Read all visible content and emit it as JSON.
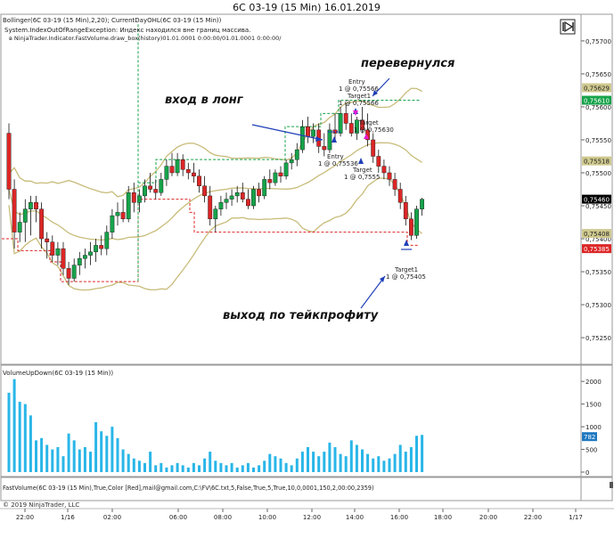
{
  "window": {
    "title": "6C 03-19 (15 Min)  16.01.2019"
  },
  "price_panel": {
    "indicators_label": "Bollinger(6C 03-19 (15 Min),2,20); CurrentDayOHL(6C 03-19 (15 Min))",
    "error_line1": "System.IndexOutOfRangeException: Индекс находился вне границ массива.",
    "error_line2": "в NinjaTrader.Indicator.FastVolume.draw_box(history)01.01.0001 0:00:00/01.01.0001 0:00:00/",
    "annotations": [
      {
        "text": "перевернулся"
      },
      {
        "text": "вход в лонг"
      },
      {
        "text": "выход по тейкпрофиту"
      }
    ],
    "order_labels": [
      {
        "lines": [
          "Entry",
          "1 @ 0,75566"
        ]
      },
      {
        "lines": [
          "Target1",
          "1 @ 0,75566"
        ]
      },
      {
        "lines": [
          "Target",
          "1 @ 0,75630"
        ]
      },
      {
        "lines": [
          "Entry",
          "1 @ 0,75536"
        ]
      },
      {
        "lines": [
          "Target",
          "1 @ 0,7555"
        ]
      },
      {
        "lines": [
          "Target1",
          "1 @ 0,75405"
        ]
      }
    ],
    "y_ticks": [
      "0,75700",
      "0,75650",
      "0,75600",
      "0,75550",
      "0,75500",
      "0,75450",
      "0,75400",
      "0,75350",
      "0,75300",
      "0,75250"
    ],
    "badges": [
      {
        "text": "0,75629",
        "color": "#cfc98f"
      },
      {
        "text": "0,75610",
        "color": "#16a34a"
      },
      {
        "text": "0,75518",
        "color": "#cfc98f"
      },
      {
        "text": "0,75460",
        "color": "#000000"
      },
      {
        "text": "0,75408",
        "color": "#cfc98f"
      },
      {
        "text": "0,75385",
        "color": "#dc2626"
      }
    ]
  },
  "volume_panel": {
    "label": "VolumeUpDown(6C 03-19 (15 Min))",
    "y_ticks": [
      "2000",
      "1500",
      "1000",
      "500",
      "0"
    ],
    "badge": {
      "text": "782",
      "color": "#1f78c1"
    }
  },
  "fastvolume_panel": {
    "label": "FastVolume(6C 03-19 (15 Min),True,Color [Red],mail@gmail.com,C:\\FV\\6C.txt,5,False,True,5,True,10,0,0001,150,2,00:00,2359)"
  },
  "footer": {
    "copyright": "© 2019 NinjaTrader, LLC"
  },
  "x_axis": {
    "labels": [
      "22:00",
      "1/16",
      "02:00",
      "06:00",
      "08:00",
      "10:00",
      "12:00",
      "14:00",
      "16:00",
      "18:00",
      "20:00",
      "22:00",
      "1/17"
    ]
  },
  "colors": {
    "up_candle": "#16a34a",
    "down_candle": "#dc2626",
    "bollinger": "#c8bc7a",
    "day_high": "#16a34a",
    "day_low": "#dc2626",
    "volume": "#29b6e8",
    "arrow": "#1f3fb8"
  },
  "chart_data": {
    "type": "candlestick",
    "symbol": "6C 03-19",
    "timeframe": "15 Min",
    "candles": [
      {
        "o": 0.7556,
        "h": 0.75575,
        "l": 0.7546,
        "c": 0.75475
      },
      {
        "o": 0.75475,
        "h": 0.7549,
        "l": 0.75385,
        "c": 0.7541
      },
      {
        "o": 0.7541,
        "h": 0.7544,
        "l": 0.75395,
        "c": 0.75425
      },
      {
        "o": 0.75425,
        "h": 0.7546,
        "l": 0.75395,
        "c": 0.75445
      },
      {
        "o": 0.75445,
        "h": 0.75465,
        "l": 0.75405,
        "c": 0.75455
      },
      {
        "o": 0.75455,
        "h": 0.75465,
        "l": 0.75425,
        "c": 0.75445
      },
      {
        "o": 0.75445,
        "h": 0.75455,
        "l": 0.75385,
        "c": 0.754
      },
      {
        "o": 0.754,
        "h": 0.7541,
        "l": 0.7537,
        "c": 0.75395
      },
      {
        "o": 0.75395,
        "h": 0.75405,
        "l": 0.75365,
        "c": 0.75375
      },
      {
        "o": 0.75375,
        "h": 0.75395,
        "l": 0.7536,
        "c": 0.75385
      },
      {
        "o": 0.75385,
        "h": 0.75395,
        "l": 0.75345,
        "c": 0.75355
      },
      {
        "o": 0.75355,
        "h": 0.75365,
        "l": 0.7533,
        "c": 0.7534
      },
      {
        "o": 0.7534,
        "h": 0.7537,
        "l": 0.75335,
        "c": 0.7536
      },
      {
        "o": 0.7536,
        "h": 0.7538,
        "l": 0.75345,
        "c": 0.7537
      },
      {
        "o": 0.7537,
        "h": 0.75385,
        "l": 0.75355,
        "c": 0.75375
      },
      {
        "o": 0.75375,
        "h": 0.75395,
        "l": 0.7536,
        "c": 0.7538
      },
      {
        "o": 0.7538,
        "h": 0.754,
        "l": 0.75365,
        "c": 0.7539
      },
      {
        "o": 0.7539,
        "h": 0.75405,
        "l": 0.75375,
        "c": 0.75385
      },
      {
        "o": 0.75385,
        "h": 0.7542,
        "l": 0.75375,
        "c": 0.7541
      },
      {
        "o": 0.7541,
        "h": 0.75445,
        "l": 0.754,
        "c": 0.75435
      },
      {
        "o": 0.75435,
        "h": 0.75455,
        "l": 0.7542,
        "c": 0.7544
      },
      {
        "o": 0.7544,
        "h": 0.7546,
        "l": 0.75425,
        "c": 0.7543
      },
      {
        "o": 0.7543,
        "h": 0.7548,
        "l": 0.75425,
        "c": 0.7547
      },
      {
        "o": 0.7547,
        "h": 0.75485,
        "l": 0.7544,
        "c": 0.75455
      },
      {
        "o": 0.75455,
        "h": 0.75475,
        "l": 0.7544,
        "c": 0.75465
      },
      {
        "o": 0.75465,
        "h": 0.7549,
        "l": 0.75455,
        "c": 0.7548
      },
      {
        "o": 0.7548,
        "h": 0.755,
        "l": 0.7547,
        "c": 0.75475
      },
      {
        "o": 0.75475,
        "h": 0.7549,
        "l": 0.7546,
        "c": 0.7547
      },
      {
        "o": 0.7547,
        "h": 0.755,
        "l": 0.75465,
        "c": 0.7549
      },
      {
        "o": 0.7549,
        "h": 0.7552,
        "l": 0.7548,
        "c": 0.7551
      },
      {
        "o": 0.7551,
        "h": 0.7553,
        "l": 0.75495,
        "c": 0.755
      },
      {
        "o": 0.755,
        "h": 0.7553,
        "l": 0.75495,
        "c": 0.7552
      },
      {
        "o": 0.7552,
        "h": 0.75528,
        "l": 0.75495,
        "c": 0.75505
      },
      {
        "o": 0.75505,
        "h": 0.75515,
        "l": 0.7549,
        "c": 0.755
      },
      {
        "o": 0.755,
        "h": 0.75515,
        "l": 0.75485,
        "c": 0.75495
      },
      {
        "o": 0.75495,
        "h": 0.75505,
        "l": 0.7547,
        "c": 0.7548
      },
      {
        "o": 0.7548,
        "h": 0.75495,
        "l": 0.75455,
        "c": 0.75465
      },
      {
        "o": 0.75465,
        "h": 0.7548,
        "l": 0.7542,
        "c": 0.7543
      },
      {
        "o": 0.7543,
        "h": 0.7545,
        "l": 0.7541,
        "c": 0.75445
      },
      {
        "o": 0.75445,
        "h": 0.75465,
        "l": 0.75435,
        "c": 0.75455
      },
      {
        "o": 0.75455,
        "h": 0.7547,
        "l": 0.75445,
        "c": 0.7546
      },
      {
        "o": 0.7546,
        "h": 0.75475,
        "l": 0.7545,
        "c": 0.75465
      },
      {
        "o": 0.75465,
        "h": 0.7548,
        "l": 0.75455,
        "c": 0.7547
      },
      {
        "o": 0.7547,
        "h": 0.75485,
        "l": 0.75455,
        "c": 0.7546
      },
      {
        "o": 0.7546,
        "h": 0.75475,
        "l": 0.75445,
        "c": 0.7545
      },
      {
        "o": 0.7545,
        "h": 0.7548,
        "l": 0.75445,
        "c": 0.75475
      },
      {
        "o": 0.75475,
        "h": 0.75485,
        "l": 0.75455,
        "c": 0.75465
      },
      {
        "o": 0.75465,
        "h": 0.75495,
        "l": 0.7546,
        "c": 0.7549
      },
      {
        "o": 0.7549,
        "h": 0.75505,
        "l": 0.75475,
        "c": 0.75485
      },
      {
        "o": 0.75485,
        "h": 0.75505,
        "l": 0.7548,
        "c": 0.755
      },
      {
        "o": 0.755,
        "h": 0.7551,
        "l": 0.75485,
        "c": 0.75495
      },
      {
        "o": 0.75495,
        "h": 0.7552,
        "l": 0.7549,
        "c": 0.75515
      },
      {
        "o": 0.75515,
        "h": 0.7553,
        "l": 0.75505,
        "c": 0.7552
      },
      {
        "o": 0.7552,
        "h": 0.75545,
        "l": 0.7551,
        "c": 0.75535
      },
      {
        "o": 0.75535,
        "h": 0.7558,
        "l": 0.7553,
        "c": 0.7557
      },
      {
        "o": 0.7557,
        "h": 0.75585,
        "l": 0.75545,
        "c": 0.75555
      },
      {
        "o": 0.75555,
        "h": 0.75575,
        "l": 0.75545,
        "c": 0.75565
      },
      {
        "o": 0.75565,
        "h": 0.75575,
        "l": 0.7553,
        "c": 0.7554
      },
      {
        "o": 0.7554,
        "h": 0.7556,
        "l": 0.75525,
        "c": 0.75535
      },
      {
        "o": 0.75535,
        "h": 0.75575,
        "l": 0.7553,
        "c": 0.75565
      },
      {
        "o": 0.75565,
        "h": 0.7559,
        "l": 0.7555,
        "c": 0.7556
      },
      {
        "o": 0.7556,
        "h": 0.756,
        "l": 0.75555,
        "c": 0.7559
      },
      {
        "o": 0.7559,
        "h": 0.75605,
        "l": 0.75565,
        "c": 0.75575
      },
      {
        "o": 0.75575,
        "h": 0.7559,
        "l": 0.75555,
        "c": 0.7556
      },
      {
        "o": 0.7556,
        "h": 0.75585,
        "l": 0.7555,
        "c": 0.7558
      },
      {
        "o": 0.7558,
        "h": 0.756,
        "l": 0.7556,
        "c": 0.75565
      },
      {
        "o": 0.75565,
        "h": 0.7559,
        "l": 0.7554,
        "c": 0.7555
      },
      {
        "o": 0.7555,
        "h": 0.7556,
        "l": 0.75515,
        "c": 0.75525
      },
      {
        "o": 0.75525,
        "h": 0.75535,
        "l": 0.755,
        "c": 0.7551
      },
      {
        "o": 0.7551,
        "h": 0.7552,
        "l": 0.7549,
        "c": 0.755
      },
      {
        "o": 0.755,
        "h": 0.7551,
        "l": 0.7548,
        "c": 0.7549
      },
      {
        "o": 0.7549,
        "h": 0.755,
        "l": 0.75465,
        "c": 0.75475
      },
      {
        "o": 0.75475,
        "h": 0.75485,
        "l": 0.75445,
        "c": 0.75455
      },
      {
        "o": 0.75455,
        "h": 0.75465,
        "l": 0.7542,
        "c": 0.7543
      },
      {
        "o": 0.7543,
        "h": 0.7544,
        "l": 0.75398,
        "c": 0.75405
      },
      {
        "o": 0.75405,
        "h": 0.7545,
        "l": 0.754,
        "c": 0.75445
      },
      {
        "o": 0.75445,
        "h": 0.75462,
        "l": 0.75435,
        "c": 0.7546
      }
    ],
    "volume": [
      1750,
      2050,
      1550,
      1500,
      1250,
      700,
      750,
      600,
      500,
      550,
      350,
      850,
      700,
      500,
      550,
      450,
      1100,
      900,
      800,
      1000,
      750,
      500,
      400,
      300,
      250,
      200,
      450,
      150,
      200,
      100,
      150,
      200,
      150,
      100,
      200,
      150,
      300,
      450,
      250,
      200,
      150,
      200,
      100,
      150,
      200,
      100,
      150,
      250,
      400,
      350,
      300,
      200,
      150,
      300,
      450,
      550,
      450,
      350,
      450,
      650,
      550,
      400,
      350,
      700,
      600,
      500,
      400,
      300,
      350,
      250,
      300,
      400,
      600,
      450,
      550,
      800,
      820
    ],
    "ylim": [
      0.75215,
      0.75735
    ],
    "volume_ylim": [
      0,
      2200
    ],
    "bollinger_period": 20,
    "bollinger_std": 2
  }
}
